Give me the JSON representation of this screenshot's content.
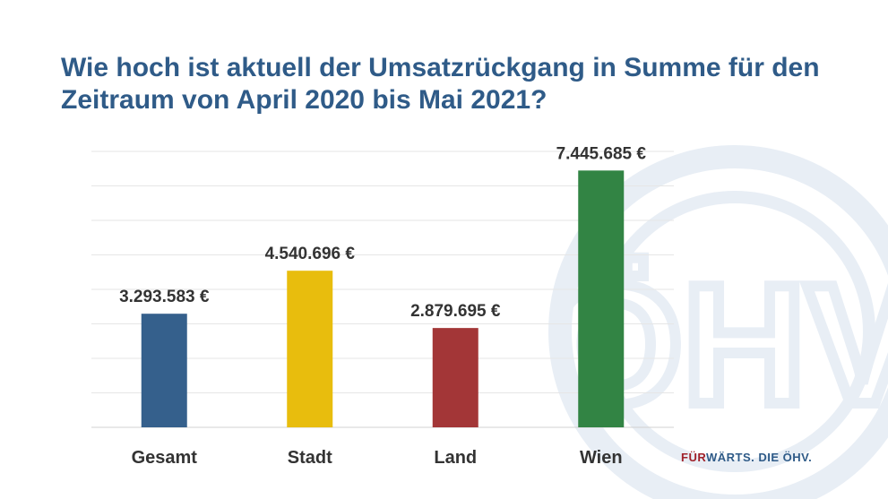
{
  "title": "Wie hoch ist aktuell der Umsatzrückgang in Summe für den Zeitraum von April 2020 bis Mai 2021?",
  "colors": {
    "title": "#2f5b88",
    "gridline": "#e6e6e6",
    "label": "#333333",
    "watermark": "#e8eef5"
  },
  "chart_data": {
    "type": "bar",
    "categories": [
      "Gesamt",
      "Stadt",
      "Land",
      "Wien"
    ],
    "values": [
      3293583,
      4540696,
      2879695,
      7445685
    ],
    "value_labels": [
      "3.293.583 €",
      "4.540.696 €",
      "2.879.695 €",
      "7.445.685 €"
    ],
    "bar_colors": [
      "#35608c",
      "#e8bd0d",
      "#a33637",
      "#328444"
    ],
    "ylim": [
      0,
      8000000
    ],
    "ytick_step": 1000000,
    "grid": true,
    "xlabel": "",
    "ylabel": ""
  },
  "watermark_text": "ÖHV",
  "footer": {
    "slogan_accent": "FÜR",
    "slogan_rest": "WÄRTS. DIE ÖHV."
  }
}
